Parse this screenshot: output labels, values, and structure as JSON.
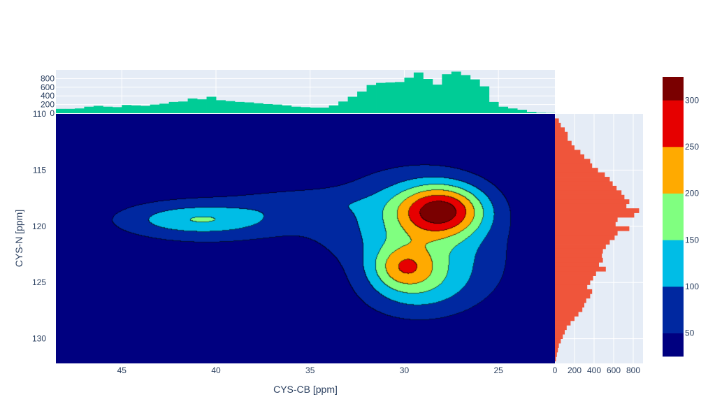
{
  "chart_data": {
    "type": "contour",
    "title": "",
    "xlabel": "CYS-CB [ppm]",
    "ylabel": "CYS-N [ppm]",
    "x_reversed": true,
    "xlim": [
      48.5,
      22.0
    ],
    "ylim": [
      132.2,
      110.0
    ],
    "x_ticks": [
      45,
      40,
      35,
      30,
      25
    ],
    "y_ticks": [
      115,
      120,
      125,
      130
    ],
    "grid": true,
    "colors": {
      "background": "#e5ecf6",
      "x_histogram": "#00cc96",
      "y_histogram": "#ef553b",
      "contour_line": "#000000"
    },
    "contour_levels": [
      50,
      100,
      150,
      200,
      250,
      300
    ],
    "colorbar": {
      "ticks": [
        50,
        100,
        150,
        200,
        250,
        300
      ],
      "range": [
        25,
        325
      ],
      "colors": [
        "#000080",
        "#0028a0",
        "#00bde6",
        "#80ff80",
        "#ffaa00",
        "#e60000",
        "#7a0000"
      ]
    },
    "peaks": [
      {
        "x": 28.0,
        "y": 118.6,
        "sx": 1.6,
        "sy": 1.6,
        "amp": 230
      },
      {
        "x": 29.6,
        "y": 119.6,
        "sx": 3.2,
        "sy": 3.5,
        "amp": 120
      },
      {
        "x": 30.0,
        "y": 123.6,
        "sx": 1.2,
        "sy": 1.4,
        "amp": 130
      },
      {
        "x": 29.5,
        "y": 126.0,
        "sx": 2.2,
        "sy": 2.0,
        "amp": 70
      },
      {
        "x": 27.5,
        "y": 124.0,
        "sx": 2.5,
        "sy": 2.5,
        "amp": 55
      },
      {
        "x": 40.8,
        "y": 119.4,
        "sx": 2.6,
        "sy": 0.9,
        "amp": 95
      },
      {
        "x": 40.5,
        "y": 119.6,
        "sx": 4.5,
        "sy": 2.3,
        "amp": 58
      },
      {
        "x": 35.5,
        "y": 117.9,
        "sx": 2.2,
        "sy": 0.8,
        "amp": 45
      }
    ],
    "x_histogram": {
      "y_ticks": [
        0,
        200,
        400,
        600,
        800
      ],
      "ylim": [
        0,
        1000
      ],
      "bin_width": 0.5,
      "bins": [
        {
          "x": 48.25,
          "count": 100
        },
        {
          "x": 47.75,
          "count": 100
        },
        {
          "x": 47.25,
          "count": 110
        },
        {
          "x": 46.75,
          "count": 150
        },
        {
          "x": 46.25,
          "count": 170
        },
        {
          "x": 45.75,
          "count": 150
        },
        {
          "x": 45.25,
          "count": 140
        },
        {
          "x": 44.75,
          "count": 190
        },
        {
          "x": 44.25,
          "count": 180
        },
        {
          "x": 43.75,
          "count": 170
        },
        {
          "x": 43.25,
          "count": 200
        },
        {
          "x": 42.75,
          "count": 220
        },
        {
          "x": 42.25,
          "count": 260
        },
        {
          "x": 41.75,
          "count": 270
        },
        {
          "x": 41.25,
          "count": 340
        },
        {
          "x": 40.75,
          "count": 320
        },
        {
          "x": 40.25,
          "count": 380
        },
        {
          "x": 39.75,
          "count": 300
        },
        {
          "x": 39.25,
          "count": 280
        },
        {
          "x": 38.75,
          "count": 260
        },
        {
          "x": 38.25,
          "count": 250
        },
        {
          "x": 37.75,
          "count": 230
        },
        {
          "x": 37.25,
          "count": 210
        },
        {
          "x": 36.75,
          "count": 200
        },
        {
          "x": 36.25,
          "count": 180
        },
        {
          "x": 35.75,
          "count": 150
        },
        {
          "x": 35.25,
          "count": 140
        },
        {
          "x": 34.75,
          "count": 130
        },
        {
          "x": 34.25,
          "count": 130
        },
        {
          "x": 33.75,
          "count": 180
        },
        {
          "x": 33.25,
          "count": 270
        },
        {
          "x": 32.75,
          "count": 380
        },
        {
          "x": 32.25,
          "count": 500
        },
        {
          "x": 31.75,
          "count": 650
        },
        {
          "x": 31.25,
          "count": 700
        },
        {
          "x": 30.75,
          "count": 710
        },
        {
          "x": 30.25,
          "count": 720
        },
        {
          "x": 29.75,
          "count": 820
        },
        {
          "x": 29.25,
          "count": 940
        },
        {
          "x": 28.75,
          "count": 790
        },
        {
          "x": 28.25,
          "count": 660
        },
        {
          "x": 27.75,
          "count": 900
        },
        {
          "x": 27.25,
          "count": 960
        },
        {
          "x": 26.75,
          "count": 880
        },
        {
          "x": 26.25,
          "count": 780
        },
        {
          "x": 25.75,
          "count": 620
        },
        {
          "x": 25.25,
          "count": 260
        },
        {
          "x": 24.75,
          "count": 150
        },
        {
          "x": 24.25,
          "count": 110
        },
        {
          "x": 23.75,
          "count": 80
        },
        {
          "x": 23.25,
          "count": 30
        },
        {
          "x": 22.75,
          "count": 10
        },
        {
          "x": 22.25,
          "count": 5
        }
      ]
    },
    "y_histogram": {
      "x_ticks": [
        0,
        200,
        400,
        600,
        800
      ],
      "xlim": [
        0,
        900
      ],
      "bin_width": 0.4,
      "bins": [
        {
          "y": 110.2,
          "count": 0
        },
        {
          "y": 110.6,
          "count": 40
        },
        {
          "y": 111.0,
          "count": 60
        },
        {
          "y": 111.4,
          "count": 100
        },
        {
          "y": 111.8,
          "count": 130
        },
        {
          "y": 112.2,
          "count": 130
        },
        {
          "y": 112.6,
          "count": 170
        },
        {
          "y": 113.0,
          "count": 200
        },
        {
          "y": 113.4,
          "count": 260
        },
        {
          "y": 113.8,
          "count": 300
        },
        {
          "y": 114.2,
          "count": 360
        },
        {
          "y": 114.6,
          "count": 380
        },
        {
          "y": 115.0,
          "count": 440
        },
        {
          "y": 115.4,
          "count": 510
        },
        {
          "y": 115.8,
          "count": 560
        },
        {
          "y": 116.2,
          "count": 590
        },
        {
          "y": 116.6,
          "count": 630
        },
        {
          "y": 117.0,
          "count": 680
        },
        {
          "y": 117.4,
          "count": 710
        },
        {
          "y": 117.8,
          "count": 760
        },
        {
          "y": 118.2,
          "count": 730
        },
        {
          "y": 118.6,
          "count": 860
        },
        {
          "y": 119.0,
          "count": 810
        },
        {
          "y": 119.4,
          "count": 640
        },
        {
          "y": 119.8,
          "count": 620
        },
        {
          "y": 120.2,
          "count": 760
        },
        {
          "y": 120.6,
          "count": 640
        },
        {
          "y": 121.0,
          "count": 610
        },
        {
          "y": 121.4,
          "count": 560
        },
        {
          "y": 121.8,
          "count": 520
        },
        {
          "y": 122.2,
          "count": 490
        },
        {
          "y": 122.6,
          "count": 480
        },
        {
          "y": 123.0,
          "count": 490
        },
        {
          "y": 123.4,
          "count": 450
        },
        {
          "y": 123.8,
          "count": 520
        },
        {
          "y": 124.2,
          "count": 420
        },
        {
          "y": 124.6,
          "count": 390
        },
        {
          "y": 125.0,
          "count": 360
        },
        {
          "y": 125.4,
          "count": 330
        },
        {
          "y": 125.8,
          "count": 380
        },
        {
          "y": 126.2,
          "count": 360
        },
        {
          "y": 126.6,
          "count": 320
        },
        {
          "y": 127.0,
          "count": 300
        },
        {
          "y": 127.4,
          "count": 280
        },
        {
          "y": 127.8,
          "count": 240
        },
        {
          "y": 128.2,
          "count": 200
        },
        {
          "y": 128.6,
          "count": 160
        },
        {
          "y": 129.0,
          "count": 120
        },
        {
          "y": 129.4,
          "count": 100
        },
        {
          "y": 129.8,
          "count": 80
        },
        {
          "y": 130.2,
          "count": 60
        },
        {
          "y": 130.6,
          "count": 40
        },
        {
          "y": 131.0,
          "count": 30
        },
        {
          "y": 131.4,
          "count": 20
        },
        {
          "y": 131.8,
          "count": 10
        }
      ]
    }
  }
}
